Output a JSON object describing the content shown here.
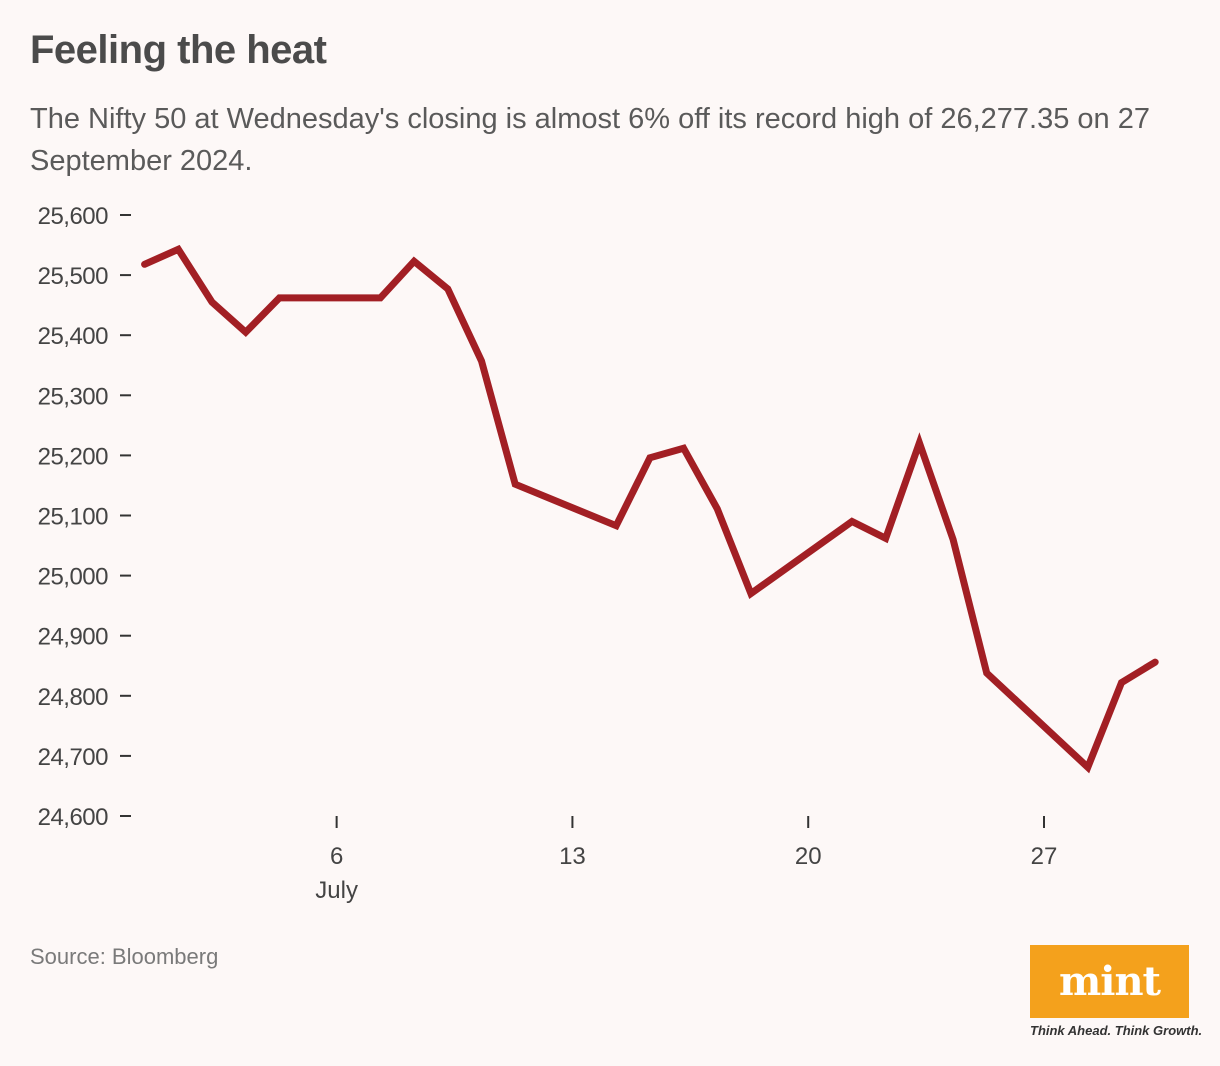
{
  "header": {
    "title": "Feeling the heat",
    "subtitle": "The Nifty 50 at Wednesday's closing is almost 6% off its record high of 26,277.35 on 27 September 2024."
  },
  "footer": {
    "source": "Source: Bloomberg",
    "logo_text": "mint",
    "tagline": "Think Ahead. Think Growth."
  },
  "colors": {
    "line": "#a21f24",
    "axis": "#333333",
    "background": "#fdf8f7",
    "logo": "#f4a11c"
  },
  "chart_data": {
    "type": "line",
    "title": "Feeling the heat",
    "xlabel": "",
    "ylabel": "",
    "x_range": [
      0.4,
      30.8
    ],
    "ylim": [
      24600,
      25600
    ],
    "y_ticks": [
      24600,
      24700,
      24800,
      24900,
      25000,
      25100,
      25200,
      25300,
      25400,
      25500,
      25600
    ],
    "y_tick_labels": [
      "24,600",
      "24,700",
      "24,800",
      "24,900",
      "25,000",
      "25,100",
      "25,200",
      "25,300",
      "25,400",
      "25,500",
      "25,600"
    ],
    "x_ticks": [
      {
        "value": 6,
        "label": "6",
        "sublabel": "July"
      },
      {
        "value": 13,
        "label": "13",
        "sublabel": ""
      },
      {
        "value": 20,
        "label": "20",
        "sublabel": ""
      },
      {
        "value": 27,
        "label": "27",
        "sublabel": ""
      }
    ],
    "grid": false,
    "series": [
      {
        "name": "Nifty 50",
        "x": [
          0.3,
          1.3,
          2.3,
          3.3,
          4.3,
          7.3,
          8.3,
          9.3,
          10.3,
          11.3,
          14.3,
          15.3,
          16.3,
          17.3,
          18.3,
          21.3,
          22.3,
          23.3,
          24.3,
          25.3,
          28.3,
          29.3,
          30.3
        ],
        "values": [
          25518,
          25543,
          25455,
          25405,
          25462,
          25462,
          25523,
          25477,
          25357,
          25152,
          25083,
          25196,
          25212,
          25111,
          24970,
          25090,
          25062,
          25221,
          25060,
          24838,
          24681,
          24822,
          24856
        ]
      }
    ]
  }
}
